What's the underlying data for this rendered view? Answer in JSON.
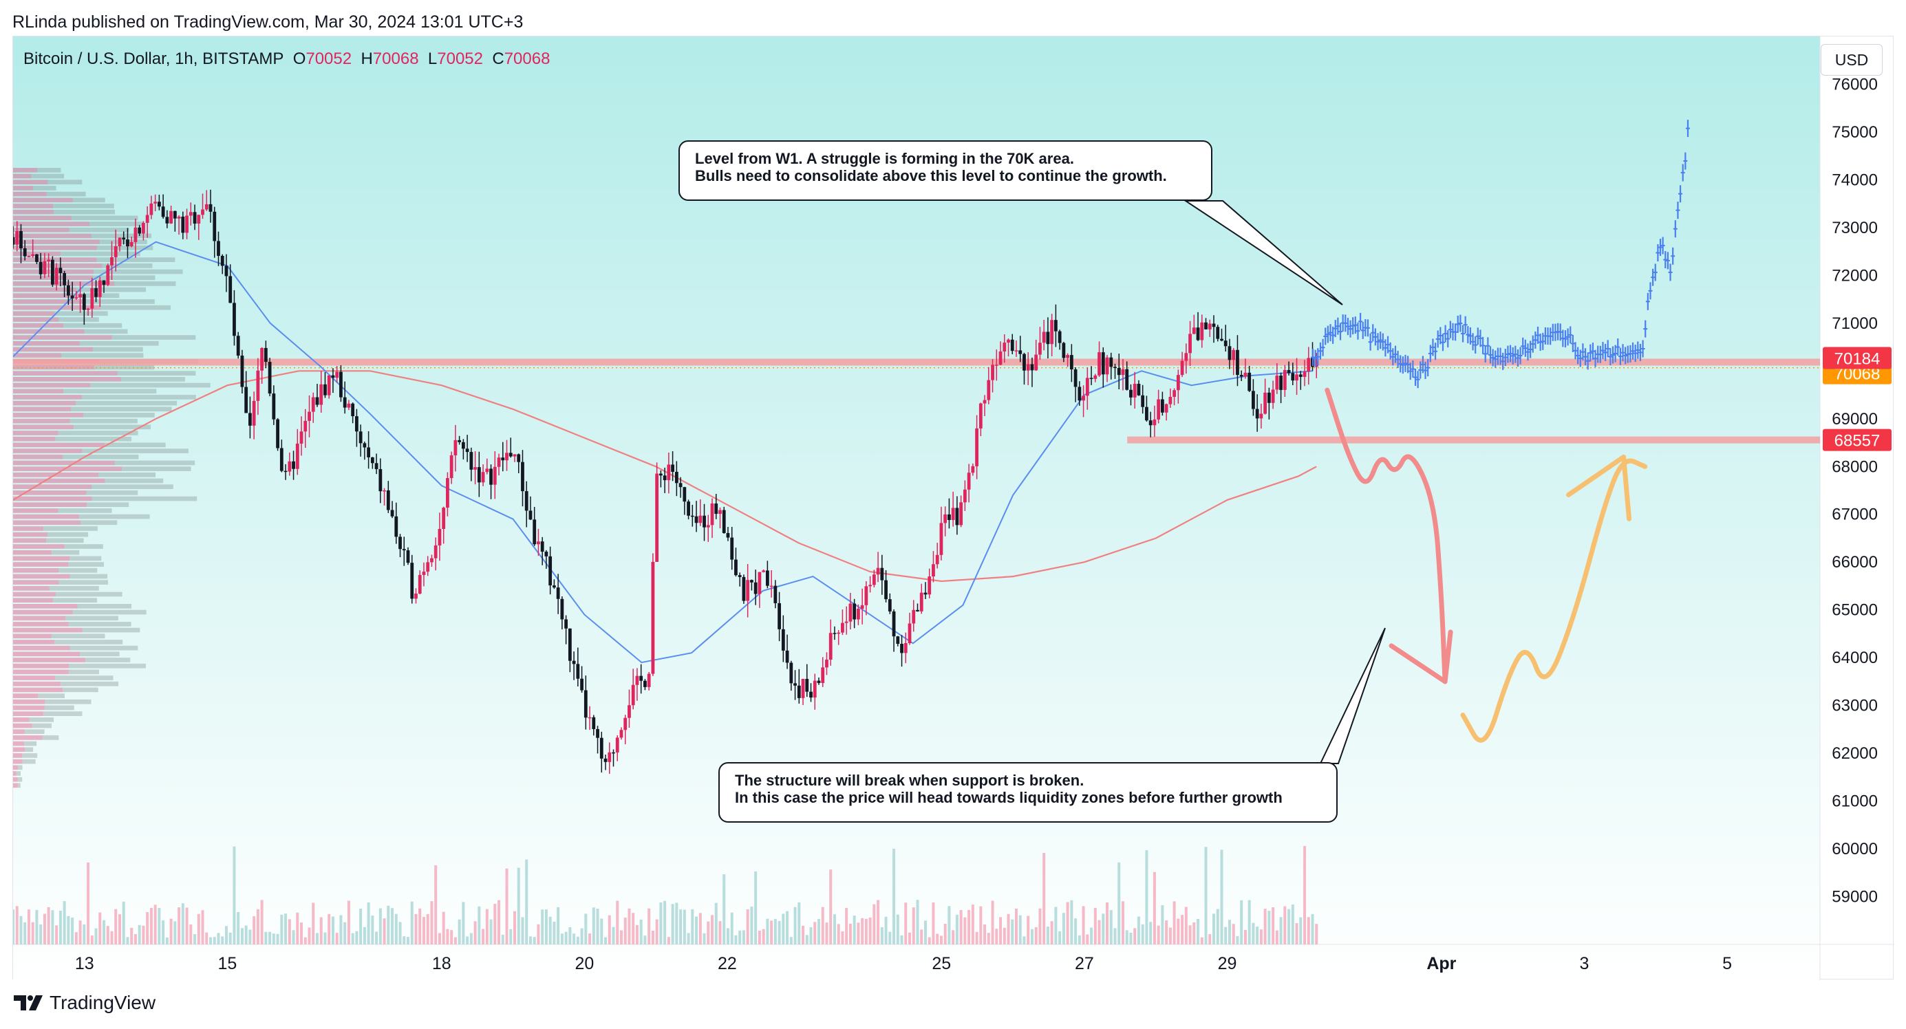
{
  "header": {
    "publisher_line": "RLinda published on TradingView.com, Mar 30, 2024 13:01 UTC+3"
  },
  "symbol": {
    "name": "Bitcoin / U.S. Dollar, 1h, BITSTAMP",
    "open_label": "O",
    "open": "70052",
    "high_label": "H",
    "high": "70068",
    "low_label": "L",
    "low": "70052",
    "close_label": "C",
    "close": "70068"
  },
  "currency_button": "USD",
  "annotations": {
    "top_callout": {
      "line1": "Level from W1. A struggle is forming in the 70K area.",
      "line2": "Bulls need to consolidate above this level to continue the growth."
    },
    "bottom_callout": {
      "line1": "The structure will break when support is broken.",
      "line2": "In this case the price will head towards liquidity zones before further growth"
    }
  },
  "footer": {
    "brand": "TradingView"
  },
  "colors": {
    "bg_top": "#b3ece9",
    "bg_bottom": "#ffffff",
    "bull": "#e0245e",
    "bear": "#131722",
    "ma_fast": "#5b8def",
    "ma_slow": "#f08080",
    "level_line": "#f4a0a0",
    "forecast": "#4a7ff0",
    "bear_arrow": "#f28b8b",
    "bull_arrow": "#f7c070",
    "tag_red": "#f23645",
    "tag_orange": "#ff9800"
  },
  "chart_data": {
    "type": "candlestick",
    "ylim": [
      58000,
      77000
    ],
    "y_ticks": [
      59000,
      60000,
      61000,
      62000,
      63000,
      64000,
      65000,
      66000,
      67000,
      68000,
      69000,
      70000,
      71000,
      72000,
      73000,
      74000,
      75000,
      76000
    ],
    "x_ticks": [
      {
        "label": "13",
        "day": 13
      },
      {
        "label": "15",
        "day": 15
      },
      {
        "label": "18",
        "day": 18
      },
      {
        "label": "20",
        "day": 20
      },
      {
        "label": "22",
        "day": 22
      },
      {
        "label": "25",
        "day": 25
      },
      {
        "label": "27",
        "day": 27
      },
      {
        "label": "29",
        "day": 29
      },
      {
        "label": "Apr",
        "day": 32
      },
      {
        "label": "3",
        "day": 34
      },
      {
        "label": "5",
        "day": 36
      }
    ],
    "price_path": [
      [
        12.0,
        72800
      ],
      [
        12.5,
        72100
      ],
      [
        13.0,
        71300
      ],
      [
        13.5,
        72600
      ],
      [
        14.0,
        73500
      ],
      [
        14.4,
        73000
      ],
      [
        14.7,
        73600
      ],
      [
        15.0,
        71800
      ],
      [
        15.3,
        68500
      ],
      [
        15.5,
        70600
      ],
      [
        15.8,
        67600
      ],
      [
        16.2,
        69300
      ],
      [
        16.5,
        70000
      ],
      [
        16.8,
        68700
      ],
      [
        17.2,
        67400
      ],
      [
        17.6,
        65400
      ],
      [
        18.0,
        66800
      ],
      [
        18.2,
        68600
      ],
      [
        18.6,
        67700
      ],
      [
        19.0,
        68400
      ],
      [
        19.3,
        66500
      ],
      [
        19.6,
        65400
      ],
      [
        19.9,
        63400
      ],
      [
        20.3,
        61600
      ],
      [
        20.6,
        63100
      ],
      [
        20.9,
        63700
      ],
      [
        21.0,
        67600
      ],
      [
        21.2,
        68100
      ],
      [
        21.5,
        66700
      ],
      [
        21.9,
        67200
      ],
      [
        22.2,
        65300
      ],
      [
        22.6,
        65800
      ],
      [
        22.9,
        63500
      ],
      [
        23.2,
        63200
      ],
      [
        23.5,
        64500
      ],
      [
        23.9,
        65200
      ],
      [
        24.1,
        65900
      ],
      [
        24.4,
        64200
      ],
      [
        24.7,
        65100
      ],
      [
        25.0,
        66700
      ],
      [
        25.3,
        67100
      ],
      [
        25.6,
        69600
      ],
      [
        25.9,
        70900
      ],
      [
        26.2,
        70100
      ],
      [
        26.6,
        71000
      ],
      [
        26.9,
        69400
      ],
      [
        27.2,
        70200
      ],
      [
        27.5,
        69900
      ],
      [
        27.7,
        69600
      ],
      [
        27.9,
        68900
      ],
      [
        28.2,
        69600
      ],
      [
        28.5,
        70700
      ],
      [
        28.8,
        71100
      ],
      [
        29.1,
        70300
      ],
      [
        29.4,
        69200
      ],
      [
        29.7,
        69800
      ],
      [
        30.0,
        70100
      ],
      [
        30.25,
        70068
      ]
    ],
    "volume_profile_bins": [
      {
        "price": 61500,
        "volume": 5
      },
      {
        "price": 62000,
        "volume": 12
      },
      {
        "price": 62500,
        "volume": 20
      },
      {
        "price": 63000,
        "volume": 34
      },
      {
        "price": 63500,
        "volume": 55
      },
      {
        "price": 64000,
        "volume": 72
      },
      {
        "price": 64500,
        "volume": 60
      },
      {
        "price": 65000,
        "volume": 58
      },
      {
        "price": 65500,
        "volume": 52
      },
      {
        "price": 66000,
        "volume": 40
      },
      {
        "price": 66500,
        "volume": 44
      },
      {
        "price": 67000,
        "volume": 70
      },
      {
        "price": 67500,
        "volume": 82
      },
      {
        "price": 68000,
        "volume": 88
      },
      {
        "price": 68500,
        "volume": 80
      },
      {
        "price": 69000,
        "volume": 85
      },
      {
        "price": 69500,
        "volume": 92
      },
      {
        "price": 70000,
        "volume": 100
      },
      {
        "price": 70500,
        "volume": 88
      },
      {
        "price": 71000,
        "volume": 60
      },
      {
        "price": 71500,
        "volume": 70
      },
      {
        "price": 72000,
        "volume": 76
      },
      {
        "price": 72500,
        "volume": 70
      },
      {
        "price": 73000,
        "volume": 62
      },
      {
        "price": 73500,
        "volume": 50
      },
      {
        "price": 74000,
        "volume": 30
      }
    ],
    "moving_average_fast": [
      [
        12.0,
        70300
      ],
      [
        13.0,
        71800
      ],
      [
        14.0,
        72700
      ],
      [
        15.0,
        72200
      ],
      [
        15.6,
        71000
      ],
      [
        16.3,
        70100
      ],
      [
        17.0,
        69100
      ],
      [
        18.0,
        67600
      ],
      [
        19.0,
        66900
      ],
      [
        20.0,
        64900
      ],
      [
        20.8,
        63900
      ],
      [
        21.5,
        64100
      ],
      [
        22.5,
        65400
      ],
      [
        23.2,
        65700
      ],
      [
        24.0,
        64900
      ],
      [
        24.6,
        64300
      ],
      [
        25.3,
        65100
      ],
      [
        26.0,
        67400
      ],
      [
        27.0,
        69500
      ],
      [
        27.8,
        70000
      ],
      [
        28.5,
        69700
      ],
      [
        29.3,
        69900
      ],
      [
        30.2,
        70000
      ]
    ],
    "moving_average_slow": [
      [
        12.0,
        67300
      ],
      [
        13.0,
        68200
      ],
      [
        14.0,
        69000
      ],
      [
        15.0,
        69700
      ],
      [
        16.0,
        70000
      ],
      [
        17.0,
        70000
      ],
      [
        18.0,
        69700
      ],
      [
        19.0,
        69200
      ],
      [
        20.0,
        68600
      ],
      [
        21.0,
        68000
      ],
      [
        22.0,
        67200
      ],
      [
        23.0,
        66400
      ],
      [
        24.0,
        65800
      ],
      [
        25.0,
        65600
      ],
      [
        26.0,
        65700
      ],
      [
        27.0,
        66000
      ],
      [
        28.0,
        66500
      ],
      [
        29.0,
        67300
      ],
      [
        30.0,
        67800
      ],
      [
        30.25,
        68000
      ]
    ],
    "forecast_path": [
      [
        30.2,
        70200
      ],
      [
        30.5,
        70900
      ],
      [
        30.8,
        71000
      ],
      [
        31.1,
        70600
      ],
      [
        31.4,
        70300
      ],
      [
        31.7,
        69900
      ],
      [
        32.0,
        70700
      ],
      [
        32.3,
        70900
      ],
      [
        32.6,
        70500
      ],
      [
        32.9,
        70200
      ],
      [
        33.3,
        70600
      ],
      [
        33.7,
        70800
      ],
      [
        34.0,
        70300
      ],
      [
        34.5,
        70400
      ],
      [
        34.8,
        70300
      ],
      [
        34.9,
        71500
      ],
      [
        35.0,
        72200
      ],
      [
        35.1,
        72700
      ],
      [
        35.2,
        72000
      ],
      [
        35.3,
        73300
      ],
      [
        35.4,
        74200
      ],
      [
        35.45,
        75000
      ]
    ],
    "horizontal_levels": [
      {
        "price": 70068,
        "label": "70068",
        "style": "orange"
      },
      {
        "price": 70184,
        "label": "70184",
        "style": "red"
      },
      {
        "price": 68557,
        "label": "68557",
        "style": "red"
      }
    ],
    "bearish_scenario_path": [
      [
        30.4,
        69600
      ],
      [
        30.7,
        68200
      ],
      [
        30.95,
        67500
      ],
      [
        31.15,
        68300
      ],
      [
        31.35,
        67800
      ],
      [
        31.55,
        68400
      ],
      [
        31.9,
        67300
      ],
      [
        32.0,
        65300
      ],
      [
        32.05,
        63500
      ]
    ],
    "bullish_scenario_path": [
      [
        32.3,
        62800
      ],
      [
        32.6,
        62000
      ],
      [
        32.95,
        63700
      ],
      [
        33.2,
        64300
      ],
      [
        33.45,
        63300
      ],
      [
        33.85,
        64800
      ],
      [
        34.3,
        67300
      ],
      [
        34.55,
        68200
      ],
      [
        34.85,
        68000
      ]
    ]
  }
}
